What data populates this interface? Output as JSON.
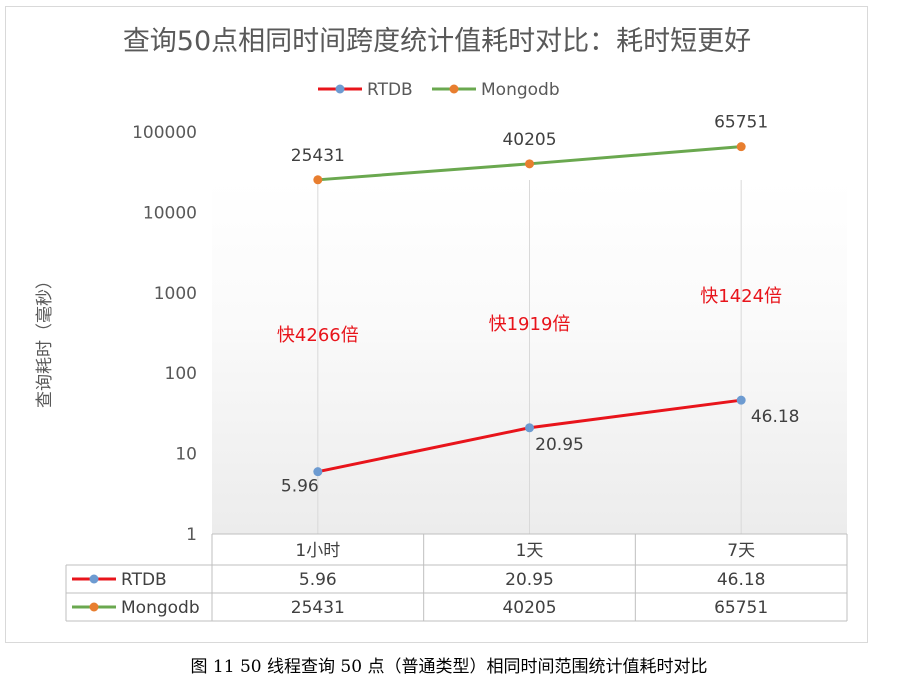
{
  "chart_data": {
    "type": "line",
    "title": "查询50点相同时间跨度统计值耗时对比：耗时短更好",
    "ylabel": "查询耗时（毫秒）",
    "xlabel": "",
    "y_scale": "log",
    "ylim": [
      1,
      100000
    ],
    "y_ticks": [
      "1",
      "10",
      "100",
      "1000",
      "10000",
      "100000"
    ],
    "categories": [
      "1小时",
      "1天",
      "7天"
    ],
    "series": [
      {
        "name": "RTDB",
        "values": [
          5.96,
          20.95,
          46.18
        ],
        "labels": [
          "5.96",
          "20.95",
          "46.18"
        ],
        "color": "#e8141b",
        "marker_color": "#6d9bd1"
      },
      {
        "name": "Mongodb",
        "values": [
          25431,
          40205,
          65751
        ],
        "labels": [
          "25431",
          "40205",
          "65751"
        ],
        "color": "#6aa84f",
        "marker_color": "#e87e2f"
      }
    ],
    "annotations": [
      "快4266倍",
      "快1919倍",
      "快1424倍"
    ],
    "annotation_color": "#e8141b",
    "legend": "top",
    "grid": "vertical",
    "data_table": true
  },
  "caption": "图 11  50 线程查询 50 点（普通类型）相同时间范围统计值耗时对比"
}
